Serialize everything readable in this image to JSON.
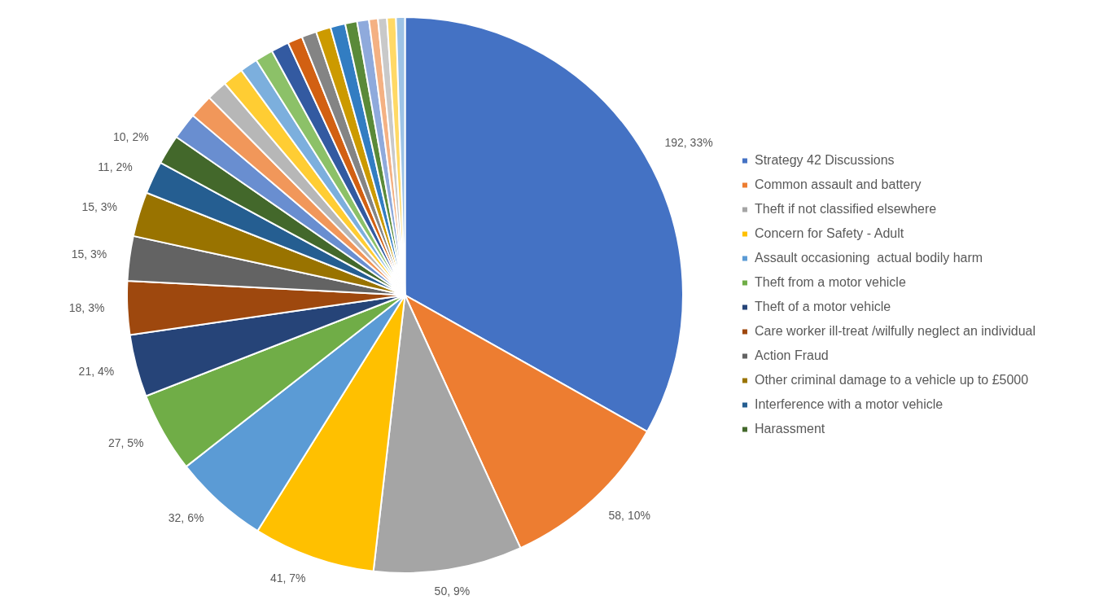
{
  "chart_data": {
    "type": "pie",
    "categories": [
      "Strategy 42 Discussions",
      "Common assault and battery",
      "Theft if not classified elsewhere",
      "Concern for Safety - Adult",
      "Assault occasioning  actual bodily harm",
      "Theft from a motor vehicle",
      "Theft of a motor vehicle",
      "Care worker ill-treat /wilfully neglect an individual",
      "Action Fraud",
      "Other criminal damage to a vehicle up to £5000",
      "Interference with a motor vehicle",
      "Harassment",
      null,
      null,
      null,
      null,
      null,
      null,
      null,
      null,
      null,
      null,
      null,
      null,
      null,
      null,
      null,
      null,
      null
    ],
    "values": [
      192,
      58,
      50,
      41,
      32,
      27,
      21,
      18,
      15,
      15,
      11,
      10,
      9,
      8,
      7,
      7,
      6,
      6,
      6,
      5,
      5,
      5,
      5,
      4,
      4,
      3,
      3,
      3,
      3
    ],
    "value_labels": [
      "192, 33%",
      "58, 10%",
      "50, 9%",
      "41, 7%",
      "32, 6%",
      "27, 5%",
      "21, 4%",
      "18, 3%",
      "15, 3%",
      "15, 3%",
      "11, 2%",
      "10, 2%",
      null,
      null,
      null,
      null,
      null,
      null,
      null,
      null,
      null,
      null,
      null,
      null,
      null,
      null,
      null,
      null,
      null
    ],
    "colors": [
      "#4472c4",
      "#ed7d31",
      "#a5a5a5",
      "#ffc000",
      "#5b9bd5",
      "#70ad47",
      "#264478",
      "#9e480e",
      "#636363",
      "#997300",
      "#255e91",
      "#43682b",
      "#698ed0",
      "#f1975a",
      "#b7b7b7",
      "#ffcd33",
      "#7cafdd",
      "#8cc168",
      "#335aa1",
      "#d26012",
      "#848484",
      "#cc9a00",
      "#327dc2",
      "#5a8a39",
      "#8faadc",
      "#f4b183",
      "#c9c9c9",
      "#ffd966",
      "#9dc3e6"
    ],
    "legend": "right"
  }
}
